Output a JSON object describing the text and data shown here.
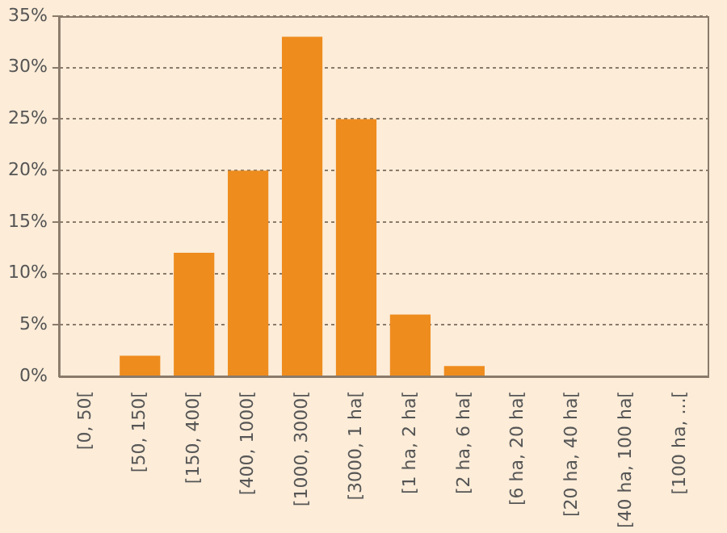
{
  "chart_data": {
    "type": "bar",
    "categories": [
      "[0, 50[",
      "[50, 150[",
      "[150, 400[",
      "[400, 1000[",
      "[1000, 3000[",
      "[3000, 1 ha[",
      "[1 ha, 2 ha[",
      "[2 ha, 6 ha[",
      "[6 ha, 20 ha[",
      "[20 ha, 40 ha[",
      "[40 ha, 100 ha[",
      "[100 ha, ...["
    ],
    "values": [
      0,
      2,
      12,
      20,
      33,
      25,
      6,
      1,
      0,
      0,
      0,
      0
    ],
    "color": "#ee8c1e",
    "ylim": [
      0,
      35
    ],
    "yticks": [
      {
        "value": 0,
        "label": "0%"
      },
      {
        "value": 5,
        "label": "5%"
      },
      {
        "value": 10,
        "label": "10%"
      },
      {
        "value": 15,
        "label": "15%"
      },
      {
        "value": 20,
        "label": "20%"
      },
      {
        "value": 25,
        "label": "25%"
      },
      {
        "value": 30,
        "label": "30%"
      },
      {
        "value": 35,
        "label": "35%"
      }
    ],
    "grid": "y",
    "legend": false
  }
}
